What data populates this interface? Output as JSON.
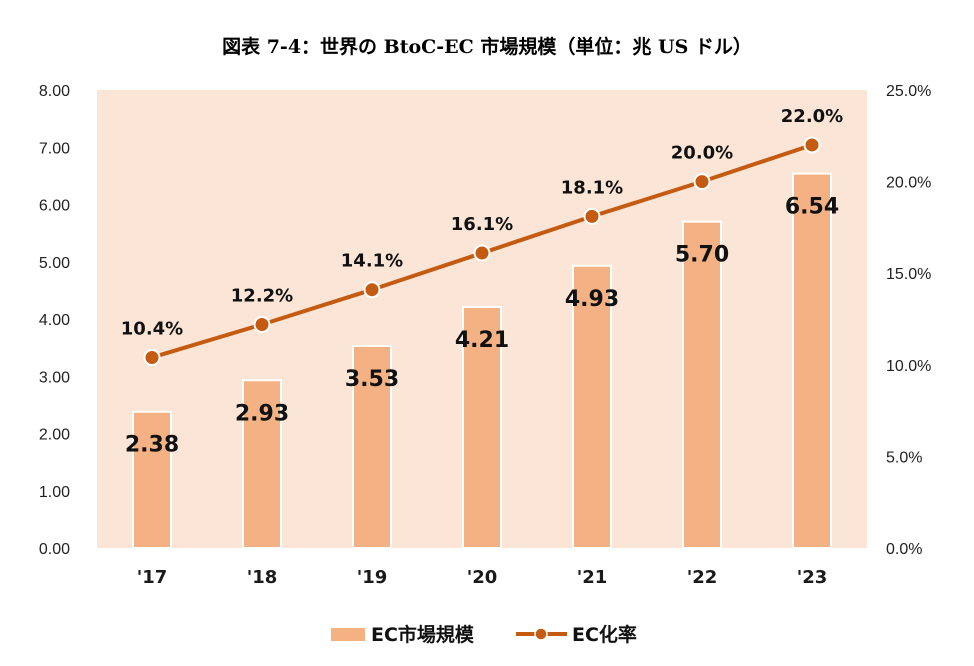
{
  "chart_data": {
    "type": "bar+line",
    "title": "図表 7-4：世界の BtoC-EC 市場規模（単位：兆 US ドル）",
    "categories": [
      "'17",
      "'18",
      "'19",
      "'20",
      "'21",
      "'22",
      "'23"
    ],
    "series": [
      {
        "name": "EC市場規模",
        "type": "bar",
        "axis": "left",
        "values": [
          2.38,
          2.93,
          3.53,
          4.21,
          4.93,
          5.7,
          6.54
        ],
        "labels": [
          "2.38",
          "2.93",
          "3.53",
          "4.21",
          "4.93",
          "5.70",
          "6.54"
        ]
      },
      {
        "name": "EC化率",
        "type": "line",
        "axis": "right",
        "values": [
          10.4,
          12.2,
          14.1,
          16.1,
          18.1,
          20.0,
          22.0
        ],
        "labels": [
          "10.4%",
          "12.2%",
          "14.1%",
          "16.1%",
          "18.1%",
          "20.0%",
          "22.0%"
        ]
      }
    ],
    "y_left": {
      "range": [
        0,
        8
      ],
      "ticks": [
        "0.00",
        "1.00",
        "2.00",
        "3.00",
        "4.00",
        "5.00",
        "6.00",
        "7.00",
        "8.00"
      ]
    },
    "y_right": {
      "range": [
        0,
        25
      ],
      "ticks": [
        "0.0%",
        "5.0%",
        "10.0%",
        "15.0%",
        "20.0%",
        "25.0%"
      ]
    },
    "legend": [
      "EC市場規模",
      "EC化率"
    ],
    "legend_position": "bottom",
    "grid": false
  },
  "colors": {
    "plot_background": "#fbe5d6",
    "bar_fill": "#f4b183",
    "bar_edge": "#ffffff",
    "line": "#c55a11"
  }
}
